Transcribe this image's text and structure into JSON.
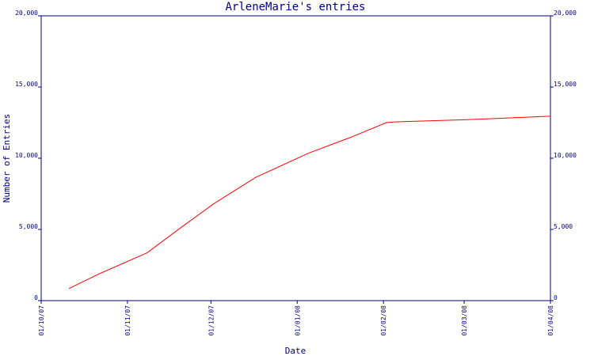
{
  "chart_data": {
    "type": "line",
    "title": "ArleneMarie's entries",
    "xlabel": "Date",
    "ylabel": "Number of Entries",
    "x_ticks": [
      "01/10/07",
      "01/11/07",
      "01/12/07",
      "01/01/08",
      "01/02/08",
      "01/03/08",
      "01/04/08"
    ],
    "y_ticks": [
      "0",
      "5,000",
      "10,000",
      "15,000",
      "20,000"
    ],
    "ylim": [
      0,
      20000
    ],
    "xlim": [
      "2007-10-01",
      "2008-04-01"
    ],
    "grid": false,
    "series": [
      {
        "color": "#ff0000",
        "points": [
          {
            "x": "2007-10-11",
            "y": 850
          },
          {
            "x": "2007-10-22",
            "y": 1900
          },
          {
            "x": "2007-11-08",
            "y": 3350
          },
          {
            "x": "2007-11-20",
            "y": 5100
          },
          {
            "x": "2007-12-02",
            "y": 6800
          },
          {
            "x": "2007-12-17",
            "y": 8650
          },
          {
            "x": "2008-01-05",
            "y": 10350
          },
          {
            "x": "2008-01-20",
            "y": 11450
          },
          {
            "x": "2008-02-02",
            "y": 12500
          },
          {
            "x": "2008-02-05",
            "y": 12550
          },
          {
            "x": "2008-03-01",
            "y": 12700
          },
          {
            "x": "2008-04-01",
            "y": 12950
          }
        ]
      }
    ]
  },
  "colors": {
    "axis": "#000080",
    "text": "#000080",
    "line": "#ff0000",
    "background": "#ffffff"
  }
}
